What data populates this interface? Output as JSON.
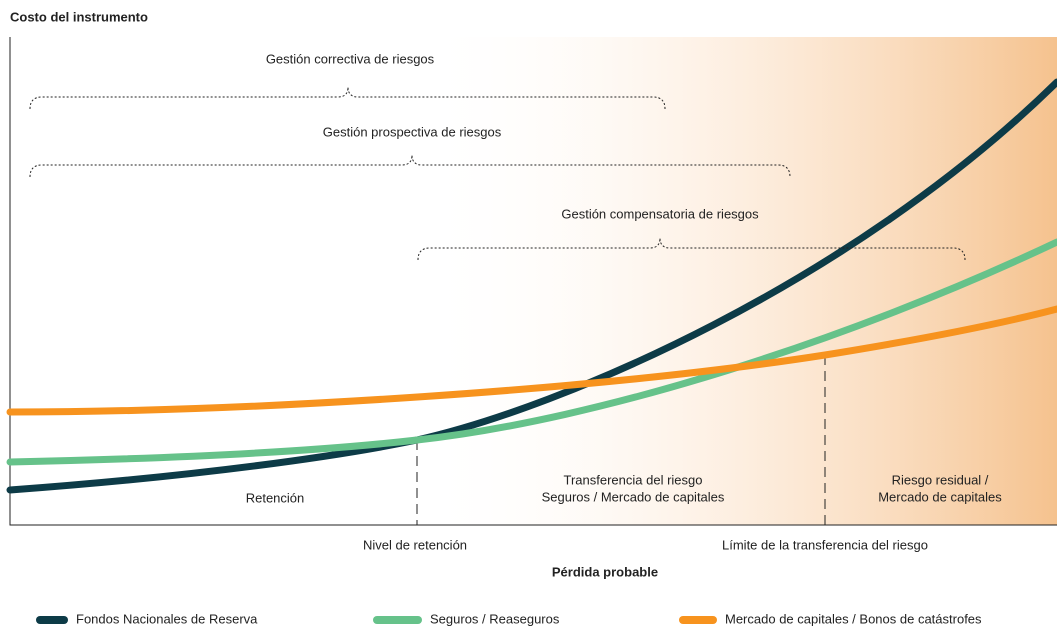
{
  "y_axis_label": "Costo del instrumento",
  "x_axis_label": "Pérdida probable",
  "brackets": [
    "Gestión correctiva de riesgos",
    "Gestión prospectiva de riesgos",
    "Gestión compensatoria de riesgos"
  ],
  "zones": [
    [
      "Retención"
    ],
    [
      "Transferencia del riesgo",
      "Seguros / Mercado de capitales"
    ],
    [
      "Riesgo residual /",
      "Mercado de capitales"
    ]
  ],
  "thresholds": [
    "Nivel de retención",
    "Límite de la transferencia del riesgo"
  ],
  "legend": [
    {
      "name": "Fondos Nacionales de Reserva",
      "color": "#0d3b47"
    },
    {
      "name": "Seguros / Reaseguros",
      "color": "#66c28a"
    },
    {
      "name": "Mercado de capitales / Bonos de catástrofes",
      "color": "#f7931e"
    }
  ]
}
